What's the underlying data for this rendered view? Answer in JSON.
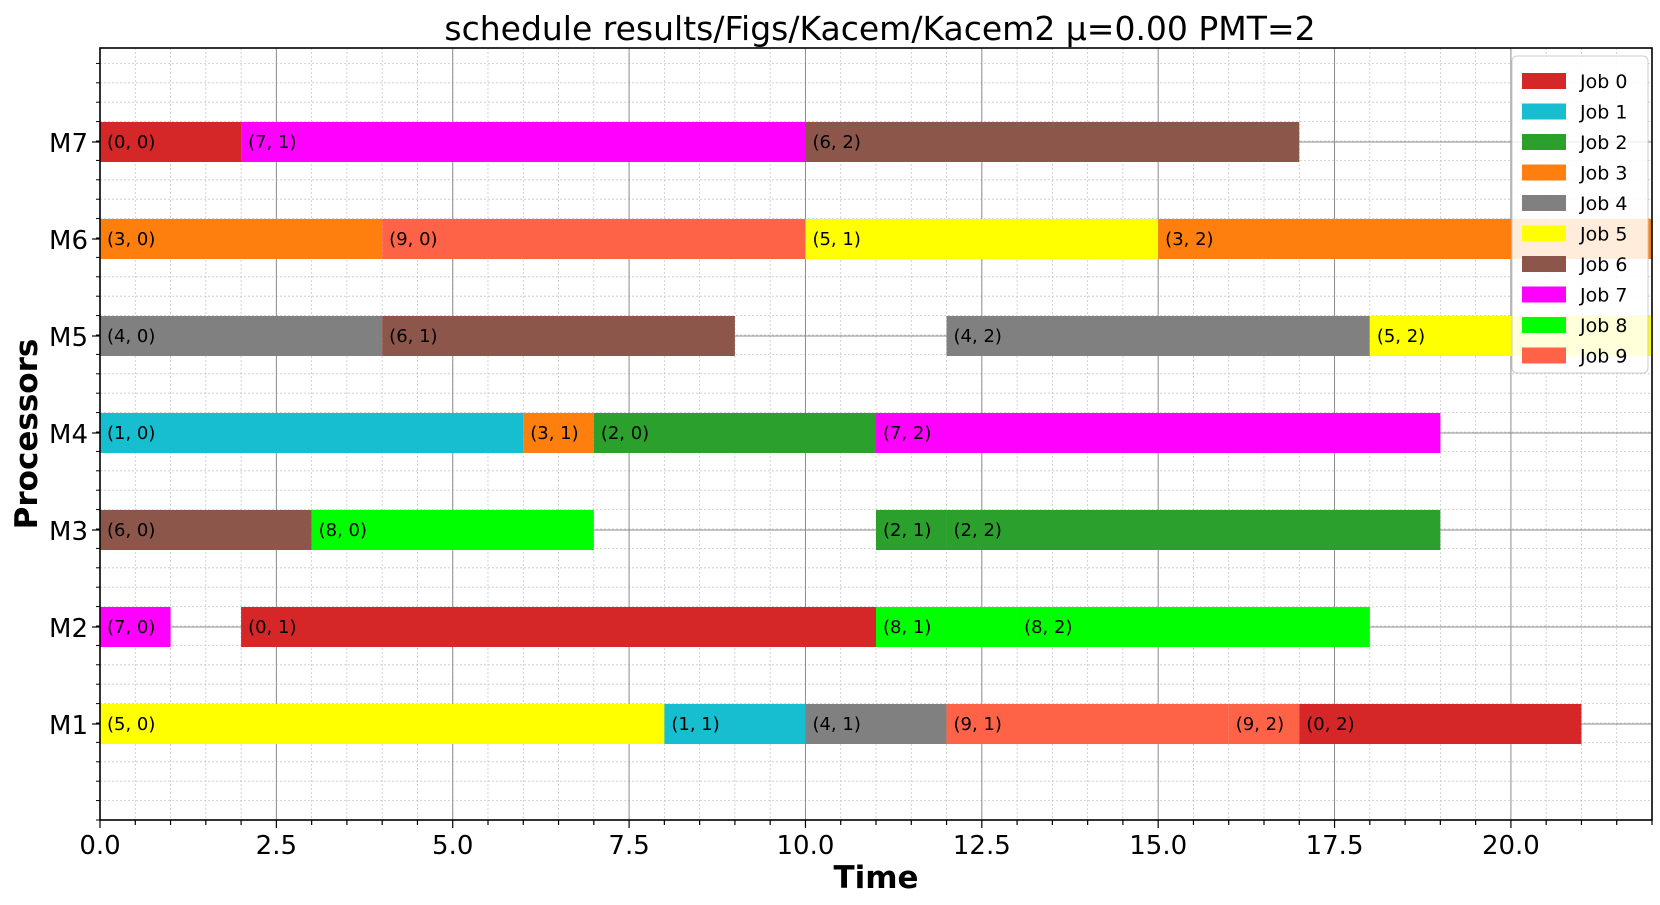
{
  "chart_data": {
    "type": "gantt",
    "title": "schedule results/Figs/Kacem/Kacem2 μ=0.00 PMT=2",
    "xlabel": "Time",
    "ylabel": "Processors",
    "xlim": [
      0,
      22
    ],
    "x_ticks": [
      "0.0",
      "2.5",
      "5.0",
      "7.5",
      "10.0",
      "12.5",
      "15.0",
      "17.5",
      "20.0"
    ],
    "categories": [
      "M1",
      "M2",
      "M3",
      "M4",
      "M5",
      "M6",
      "M7"
    ],
    "grid": true,
    "legend_position": "top-right",
    "jobs": [
      {
        "name": "Job 0",
        "color": "#d62728"
      },
      {
        "name": "Job 1",
        "color": "#17becf"
      },
      {
        "name": "Job 2",
        "color": "#2ca02c"
      },
      {
        "name": "Job 3",
        "color": "#ff7f0e"
      },
      {
        "name": "Job 4",
        "color": "#808080"
      },
      {
        "name": "Job 5",
        "color": "#ffff00"
      },
      {
        "name": "Job 6",
        "color": "#8c564b"
      },
      {
        "name": "Job 7",
        "color": "#ff00ff"
      },
      {
        "name": "Job 8",
        "color": "#00ff00"
      },
      {
        "name": "Job 9",
        "color": "#ff6347"
      }
    ],
    "operations": [
      {
        "machine": "M7",
        "job": 0,
        "start": 0,
        "end": 2,
        "label": "(0, 0)"
      },
      {
        "machine": "M7",
        "job": 7,
        "start": 2,
        "end": 10,
        "label": "(7, 1)"
      },
      {
        "machine": "M7",
        "job": 6,
        "start": 10,
        "end": 17,
        "label": "(6, 2)"
      },
      {
        "machine": "M6",
        "job": 3,
        "start": 0,
        "end": 4,
        "label": "(3, 0)"
      },
      {
        "machine": "M6",
        "job": 9,
        "start": 4,
        "end": 10,
        "label": "(9, 0)"
      },
      {
        "machine": "M6",
        "job": 5,
        "start": 10,
        "end": 15,
        "label": "(5, 1)"
      },
      {
        "machine": "M6",
        "job": 3,
        "start": 15,
        "end": 22,
        "label": "(3, 2)"
      },
      {
        "machine": "M5",
        "job": 4,
        "start": 0,
        "end": 4,
        "label": "(4, 0)"
      },
      {
        "machine": "M5",
        "job": 6,
        "start": 4,
        "end": 9,
        "label": "(6, 1)"
      },
      {
        "machine": "M5",
        "job": 4,
        "start": 12,
        "end": 18,
        "label": "(4, 2)"
      },
      {
        "machine": "M5",
        "job": 5,
        "start": 18,
        "end": 22,
        "label": "(5, 2)"
      },
      {
        "machine": "M4",
        "job": 1,
        "start": 0,
        "end": 6,
        "label": "(1, 0)"
      },
      {
        "machine": "M4",
        "job": 3,
        "start": 6,
        "end": 7,
        "label": "(3, 1)"
      },
      {
        "machine": "M4",
        "job": 2,
        "start": 7,
        "end": 11,
        "label": "(2, 0)"
      },
      {
        "machine": "M4",
        "job": 7,
        "start": 11,
        "end": 19,
        "label": "(7, 2)"
      },
      {
        "machine": "M3",
        "job": 6,
        "start": 0,
        "end": 3,
        "label": "(6, 0)"
      },
      {
        "machine": "M3",
        "job": 8,
        "start": 3,
        "end": 7,
        "label": "(8, 0)"
      },
      {
        "machine": "M3",
        "job": 2,
        "start": 11,
        "end": 12,
        "label": "(2, 1)"
      },
      {
        "machine": "M3",
        "job": 2,
        "start": 12,
        "end": 19,
        "label": "(2, 2)"
      },
      {
        "machine": "M2",
        "job": 7,
        "start": 0,
        "end": 1,
        "label": "(7, 0)"
      },
      {
        "machine": "M2",
        "job": 0,
        "start": 2,
        "end": 11,
        "label": "(0, 1)"
      },
      {
        "machine": "M2",
        "job": 8,
        "start": 11,
        "end": 13,
        "label": "(8, 1)"
      },
      {
        "machine": "M2",
        "job": 8,
        "start": 13,
        "end": 18,
        "label": "(8, 2)"
      },
      {
        "machine": "M1",
        "job": 5,
        "start": 0,
        "end": 8,
        "label": "(5, 0)"
      },
      {
        "machine": "M1",
        "job": 1,
        "start": 8,
        "end": 10,
        "label": "(1, 1)"
      },
      {
        "machine": "M1",
        "job": 4,
        "start": 10,
        "end": 12,
        "label": "(4, 1)"
      },
      {
        "machine": "M1",
        "job": 9,
        "start": 12,
        "end": 16,
        "label": "(9, 1)"
      },
      {
        "machine": "M1",
        "job": 9,
        "start": 16,
        "end": 17,
        "label": "(9, 2)"
      },
      {
        "machine": "M1",
        "job": 0,
        "start": 17,
        "end": 21,
        "label": "(0, 2)"
      }
    ]
  }
}
